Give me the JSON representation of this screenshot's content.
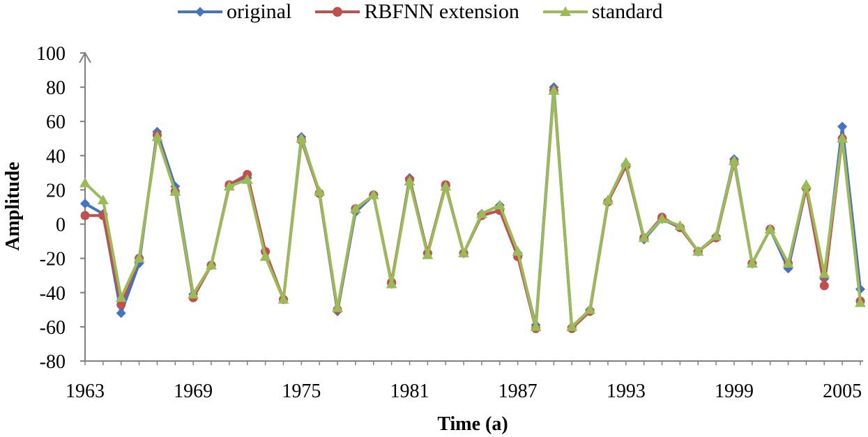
{
  "chart_data": {
    "type": "line",
    "xlabel": "Time (a)",
    "ylabel": "Amplitude",
    "ylim": [
      -80,
      100
    ],
    "yticks": [
      -80,
      -60,
      -40,
      -20,
      0,
      20,
      40,
      60,
      80,
      100
    ],
    "xlim": [
      1963,
      2006
    ],
    "xticks": [
      1963,
      1969,
      1975,
      1981,
      1987,
      1993,
      1999,
      2005
    ],
    "legend_position": "top",
    "grid": false,
    "x": [
      1963,
      1964,
      1965,
      1966,
      1967,
      1968,
      1969,
      1970,
      1971,
      1972,
      1973,
      1974,
      1975,
      1976,
      1977,
      1978,
      1979,
      1980,
      1981,
      1982,
      1983,
      1984,
      1985,
      1986,
      1987,
      1988,
      1989,
      1990,
      1991,
      1992,
      1993,
      1994,
      1995,
      1996,
      1997,
      1998,
      1999,
      2000,
      2001,
      2002,
      2003,
      2004,
      2005,
      2006
    ],
    "series": [
      {
        "name": "original",
        "color": "#4472c4",
        "marker": "diamond",
        "values": [
          12,
          6,
          -52,
          -23,
          54,
          22,
          -41,
          -24,
          22,
          27,
          -16,
          -44,
          51,
          18,
          -51,
          7,
          17,
          -35,
          27,
          -17,
          22,
          -17,
          6,
          11,
          -17,
          -59,
          80,
          -60,
          -50,
          13,
          35,
          -9,
          3,
          -2,
          -16,
          -7,
          38,
          -23,
          -3,
          -26,
          21,
          -32,
          57,
          -38
        ]
      },
      {
        "name": "RBFNN extension",
        "color": "#c0504d",
        "marker": "circle",
        "values": [
          5,
          5,
          -47,
          -20,
          52,
          19,
          -43,
          -24,
          23,
          29,
          -16,
          -44,
          49,
          18,
          -50,
          9,
          17,
          -34,
          26,
          -17,
          23,
          -17,
          5,
          8,
          -19,
          -61,
          78,
          -61,
          -51,
          13,
          34,
          -8,
          4,
          -2,
          -16,
          -8,
          36,
          -23,
          -3,
          -23,
          21,
          -36,
          50,
          -45
        ]
      },
      {
        "name": "standard",
        "color": "#9bbb59",
        "marker": "triangle",
        "values": [
          24,
          14,
          -43,
          -20,
          51,
          19,
          -41,
          -24,
          22,
          26,
          -19,
          -44,
          50,
          19,
          -49,
          9,
          17,
          -35,
          25,
          -18,
          22,
          -17,
          6,
          11,
          -16,
          -60,
          78,
          -60,
          -50,
          14,
          36,
          -8,
          3,
          -1,
          -16,
          -7,
          37,
          -23,
          -3,
          -23,
          23,
          -29,
          50,
          -46
        ]
      }
    ]
  }
}
